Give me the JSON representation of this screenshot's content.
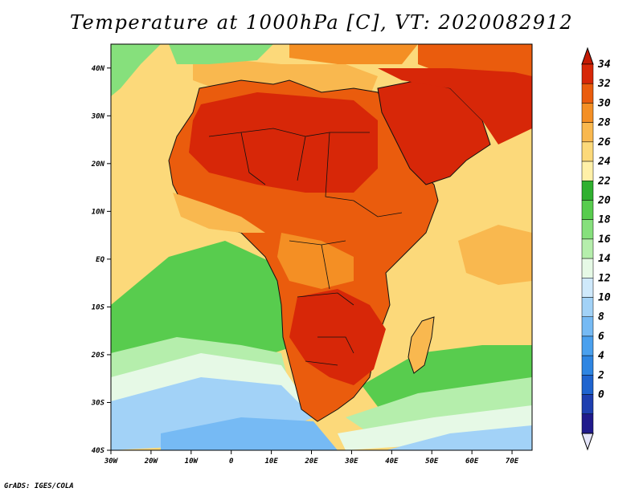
{
  "title": "Temperature at 1000hPa [C], VT: 2020082912",
  "footer": "GrADS: IGES/COLA",
  "map": {
    "lon_range": [
      -30,
      75
    ],
    "lat_range": [
      -40,
      45
    ],
    "lon_ticks": [
      {
        "value": -30,
        "label": "30W"
      },
      {
        "value": -20,
        "label": "20W"
      },
      {
        "value": -10,
        "label": "10W"
      },
      {
        "value": 0,
        "label": "0"
      },
      {
        "value": 10,
        "label": "10E"
      },
      {
        "value": 20,
        "label": "20E"
      },
      {
        "value": 30,
        "label": "30E"
      },
      {
        "value": 40,
        "label": "40E"
      },
      {
        "value": 50,
        "label": "50E"
      },
      {
        "value": 60,
        "label": "60E"
      },
      {
        "value": 70,
        "label": "70E"
      }
    ],
    "lat_ticks": [
      {
        "value": 40,
        "label": "40N"
      },
      {
        "value": 30,
        "label": "30N"
      },
      {
        "value": 20,
        "label": "20N"
      },
      {
        "value": 10,
        "label": "10N"
      },
      {
        "value": 0,
        "label": "EQ"
      },
      {
        "value": -10,
        "label": "10S"
      },
      {
        "value": -20,
        "label": "20S"
      },
      {
        "value": -30,
        "label": "30S"
      },
      {
        "value": -40,
        "label": "40S"
      }
    ]
  },
  "colorbar": {
    "levels": [
      "0",
      "2",
      "4",
      "6",
      "8",
      "10",
      "12",
      "14",
      "16",
      "18",
      "20",
      "22",
      "24",
      "26",
      "28",
      "30",
      "32",
      "34"
    ],
    "colors": [
      "#201a8c",
      "#1e3fb0",
      "#1f64cf",
      "#2e85e2",
      "#4aa0ee",
      "#76baf4",
      "#a2d2f7",
      "#cfe9fb",
      "#e6f9e6",
      "#b5eeac",
      "#86e07c",
      "#58cc4e",
      "#2fb02f",
      "#fff0a8",
      "#fcd97a",
      "#f9b84f",
      "#f48f24",
      "#ea5c0d",
      "#d72708"
    ],
    "below_color": "#e6e6fb",
    "above_color": "#c41a04"
  }
}
